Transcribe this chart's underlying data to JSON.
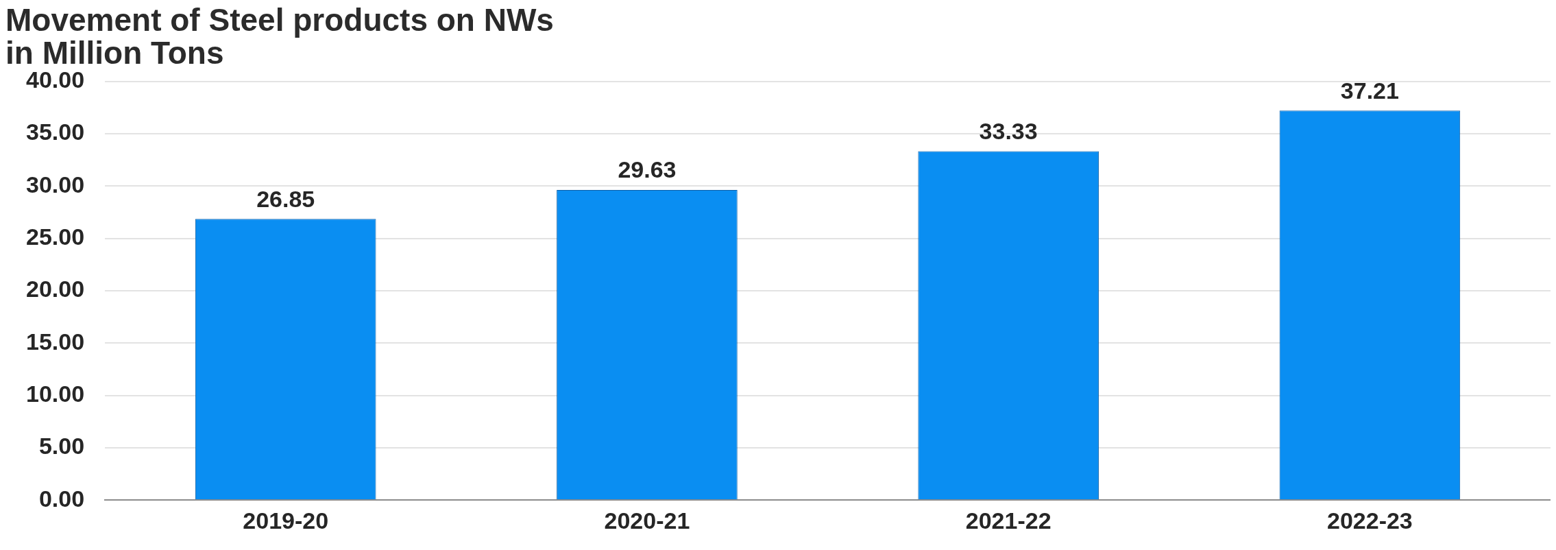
{
  "chart_data": {
    "type": "bar",
    "title": "Movement of Steel products on NWs\nin Million Tons",
    "categories": [
      "2019-20",
      "2020-21",
      "2021-22",
      "2022-23"
    ],
    "values": [
      26.85,
      29.63,
      33.33,
      37.21
    ],
    "color": "#0a8ef2",
    "ylim": [
      0,
      40
    ],
    "yticks": [
      {
        "value": 0,
        "label": "0.00"
      },
      {
        "value": 5,
        "label": "5.00"
      },
      {
        "value": 10,
        "label": "10.00"
      },
      {
        "value": 15,
        "label": "15.00"
      },
      {
        "value": 20,
        "label": "20.00"
      },
      {
        "value": 25,
        "label": "25.00"
      },
      {
        "value": 30,
        "label": "30.00"
      },
      {
        "value": 35,
        "label": "35.00"
      },
      {
        "value": 40,
        "label": "40.00"
      }
    ],
    "grid": "y",
    "legend": false,
    "data_labels": true
  }
}
